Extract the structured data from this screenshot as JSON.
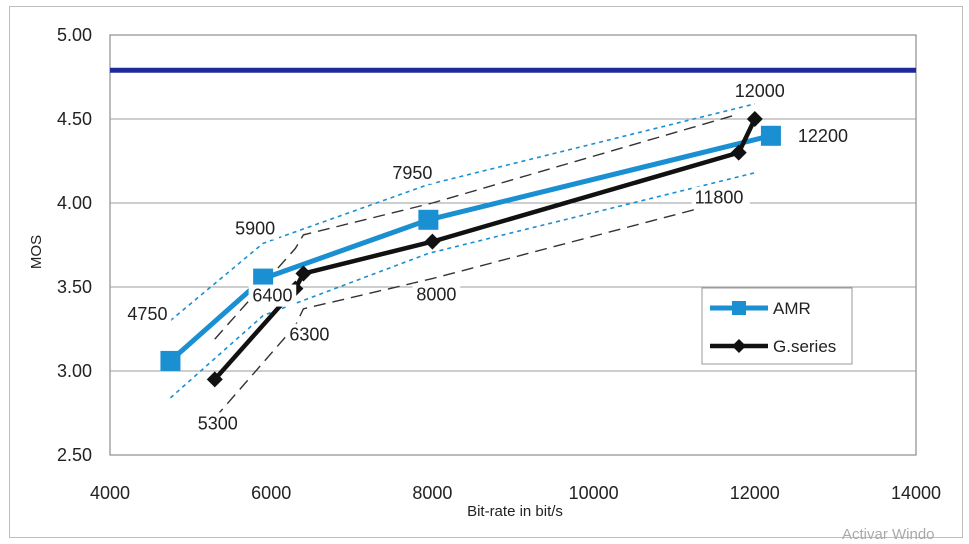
{
  "chart_data": {
    "type": "line",
    "title": "",
    "xlabel": "Bit-rate in bit/s",
    "ylabel": "MOS",
    "xlim": [
      4000,
      14000
    ],
    "ylim": [
      2.5,
      5.0
    ],
    "xticks": [
      "4000",
      "6000",
      "8000",
      "10000",
      "12000",
      "14000"
    ],
    "yticks": [
      "2.50",
      "3.00",
      "3.50",
      "4.00",
      "4.50",
      "5.00"
    ],
    "grid": "horizontal",
    "legend_position": "bottom-right",
    "reference_line": {
      "y": 4.79,
      "color": "#1f2a9a"
    },
    "series": [
      {
        "name": "AMR",
        "color": "#1a8fd1",
        "marker": "square",
        "points": [
          {
            "x": 4750,
            "y": 3.06,
            "label": "4750"
          },
          {
            "x": 5900,
            "y": 3.55,
            "label": "5900"
          },
          {
            "x": 7950,
            "y": 3.9,
            "label": "7950"
          },
          {
            "x": 12200,
            "y": 4.4,
            "label": "12200"
          }
        ]
      },
      {
        "name": "G.series",
        "color": "#111111",
        "marker": "diamond",
        "points": [
          {
            "x": 5300,
            "y": 2.95,
            "label": "5300"
          },
          {
            "x": 6300,
            "y": 3.49,
            "label": "6300"
          },
          {
            "x": 6400,
            "y": 3.58,
            "label": "6400"
          },
          {
            "x": 8000,
            "y": 3.77,
            "label": "8000"
          },
          {
            "x": 11800,
            "y": 4.3,
            "label": "11800"
          },
          {
            "x": 12000,
            "y": 4.5,
            "label": "12000"
          }
        ]
      }
    ],
    "confidence_bands": [
      {
        "series": "AMR",
        "color": "#1a8fd1",
        "style": "dotted",
        "upper": [
          [
            4750,
            3.3
          ],
          [
            5900,
            3.76
          ],
          [
            7950,
            4.11
          ],
          [
            12000,
            4.59
          ]
        ],
        "lower": [
          [
            4750,
            2.84
          ],
          [
            5900,
            3.33
          ],
          [
            7950,
            3.7
          ],
          [
            12000,
            4.18
          ]
        ]
      },
      {
        "series": "G.series",
        "color": "#333333",
        "style": "dashed",
        "upper": [
          [
            5300,
            3.19
          ],
          [
            6300,
            3.73
          ],
          [
            6400,
            3.81
          ],
          [
            8000,
            4.0
          ],
          [
            11800,
            4.53
          ]
        ],
        "lower": [
          [
            5300,
            2.72
          ],
          [
            6300,
            3.27
          ],
          [
            6400,
            3.37
          ],
          [
            8000,
            3.55
          ],
          [
            11800,
            4.03
          ]
        ]
      }
    ]
  },
  "watermark": "Activar Windo"
}
